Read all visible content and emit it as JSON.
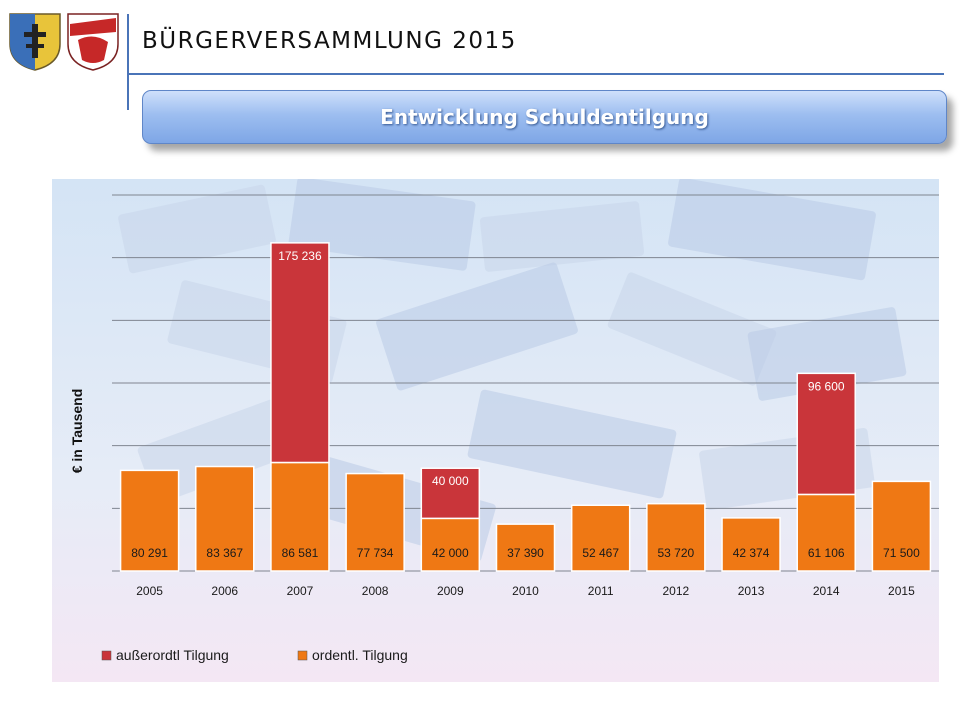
{
  "header": {
    "title": "BÜRGERVERSAMMLUNG  2015",
    "banner": "Entwicklung Schuldentilgung"
  },
  "colors": {
    "ordentl": "#ef7814",
    "ausserordentl": "#c9353a",
    "accent_line": "#4a74b8"
  },
  "chart_data": {
    "type": "bar",
    "stacked": true,
    "categories": [
      "2005",
      "2006",
      "2007",
      "2008",
      "2009",
      "2010",
      "2011",
      "2012",
      "2013",
      "2014",
      "2015"
    ],
    "series": [
      {
        "name": "ordentl. Tilgung",
        "values": [
          80291,
          83367,
          86581,
          77734,
          42000,
          37390,
          52467,
          53720,
          42374,
          61106,
          71500
        ],
        "labels": [
          "80 291",
          "83 367",
          "86 581",
          "77 734",
          "42 000",
          "37 390",
          "52 467",
          "53 720",
          "42 374",
          "61 106",
          "71 500"
        ]
      },
      {
        "name": "außerordtl Tilgung",
        "values": [
          null,
          null,
          175236,
          null,
          40000,
          null,
          null,
          null,
          null,
          96600,
          null
        ],
        "labels": [
          "",
          "",
          "175 236",
          "",
          "40 000",
          "",
          "",
          "",
          "",
          "96 600",
          ""
        ]
      }
    ],
    "ylabel": "€ in Tausend",
    "ylim": [
      0,
      300000
    ],
    "grid": true,
    "legend_position": "bottom-left",
    "legend": [
      "außerordtl Tilgung",
      "ordentl. Tilgung"
    ]
  }
}
